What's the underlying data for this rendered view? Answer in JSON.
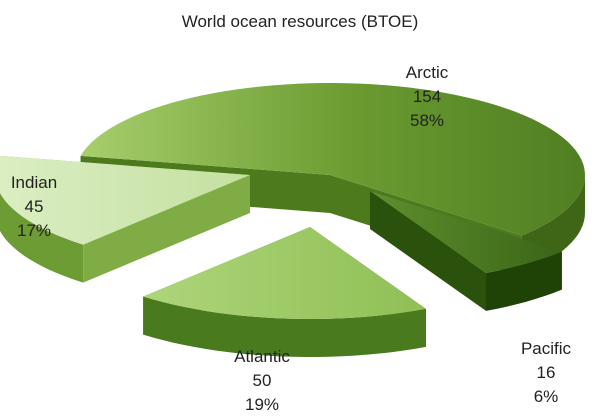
{
  "chart_data": {
    "type": "pie",
    "title": "World ocean resources (BTOE)",
    "labels": [
      "Arctic",
      "Pacific",
      "Atlantic",
      "Indian"
    ],
    "values": [
      154,
      16,
      50,
      45
    ],
    "percent_labels": [
      "58%",
      "6%",
      "19%",
      "17%"
    ],
    "exploded": true,
    "three_d": true,
    "legend": "none",
    "colors": {
      "Arctic": "#5e8f2c",
      "Pacific": "#3f6b1a",
      "Atlantic": "#9cc764",
      "Indian": "#cde5ad"
    }
  }
}
